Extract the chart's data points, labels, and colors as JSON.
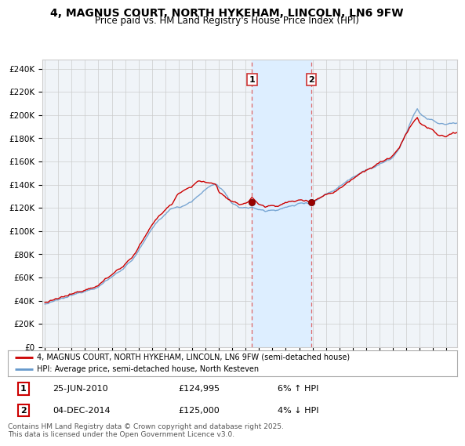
{
  "title": "4, MAGNUS COURT, NORTH HYKEHAM, LINCOLN, LN6 9FW",
  "subtitle": "Price paid vs. HM Land Registry's House Price Index (HPI)",
  "ylabel_ticks": [
    "£0",
    "£20K",
    "£40K",
    "£60K",
    "£80K",
    "£100K",
    "£120K",
    "£140K",
    "£160K",
    "£180K",
    "£200K",
    "£220K",
    "£240K"
  ],
  "ytick_values": [
    0,
    20000,
    40000,
    60000,
    80000,
    100000,
    120000,
    140000,
    160000,
    180000,
    200000,
    220000,
    240000
  ],
  "ylim": [
    0,
    248000
  ],
  "xlim_start": 1994.8,
  "xlim_end": 2025.8,
  "sale1_x": 2010.48,
  "sale1_y": 124995,
  "sale2_x": 2014.92,
  "sale2_y": 125000,
  "highlight_xmin": 2010.48,
  "highlight_xmax": 2014.92,
  "legend_line1": "4, MAGNUS COURT, NORTH HYKEHAM, LINCOLN, LN6 9FW (semi-detached house)",
  "legend_line2": "HPI: Average price, semi-detached house, North Kesteven",
  "annotation1_date": "25-JUN-2010",
  "annotation1_price": "£124,995",
  "annotation1_hpi": "6% ↑ HPI",
  "annotation2_date": "04-DEC-2014",
  "annotation2_price": "£125,000",
  "annotation2_hpi": "4% ↓ HPI",
  "footer": "Contains HM Land Registry data © Crown copyright and database right 2025.\nThis data is licensed under the Open Government Licence v3.0.",
  "line_color_price": "#cc0000",
  "line_color_hpi": "#6699cc",
  "background_color": "#f0f4f8",
  "highlight_color": "#ddeeff",
  "grid_color": "#cccccc"
}
